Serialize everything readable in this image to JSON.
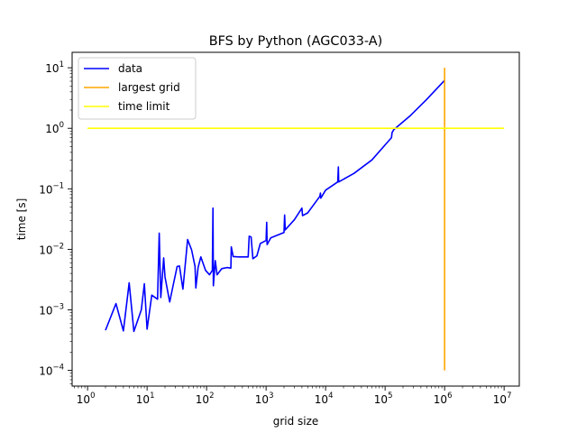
{
  "chart_data": {
    "type": "line",
    "title": "BFS by Python (AGC033-A)",
    "xlabel": "grid size",
    "ylabel": "time [s]",
    "xscale": "log",
    "yscale": "log",
    "xlim": [
      0.55,
      18000000
    ],
    "ylim": [
      5.5e-05,
      18
    ],
    "grid": false,
    "legend_position": "top-left",
    "x_ticks": [
      {
        "value": 1,
        "base": "10",
        "exp": "0"
      },
      {
        "value": 10,
        "base": "10",
        "exp": "1"
      },
      {
        "value": 100,
        "base": "10",
        "exp": "2"
      },
      {
        "value": 1000,
        "base": "10",
        "exp": "3"
      },
      {
        "value": 10000,
        "base": "10",
        "exp": "4"
      },
      {
        "value": 100000,
        "base": "10",
        "exp": "5"
      },
      {
        "value": 1000000,
        "base": "10",
        "exp": "6"
      },
      {
        "value": 10000000,
        "base": "10",
        "exp": "7"
      }
    ],
    "y_ticks": [
      {
        "value": 0.0001,
        "base": "10",
        "exp": "−4"
      },
      {
        "value": 0.001,
        "base": "10",
        "exp": "−3"
      },
      {
        "value": 0.01,
        "base": "10",
        "exp": "−2"
      },
      {
        "value": 0.1,
        "base": "10",
        "exp": "−1"
      },
      {
        "value": 1,
        "base": "10",
        "exp": "0"
      },
      {
        "value": 10,
        "base": "10",
        "exp": "1"
      }
    ],
    "series": [
      {
        "name": "data",
        "color": "#0000ff",
        "points": [
          [
            2,
            0.00046
          ],
          [
            3,
            0.00127
          ],
          [
            4,
            0.00045
          ],
          [
            5,
            0.0028
          ],
          [
            6,
            0.00044
          ],
          [
            8,
            0.001
          ],
          [
            9,
            0.0027
          ],
          [
            10,
            0.00048
          ],
          [
            12,
            0.00175
          ],
          [
            15,
            0.0015
          ],
          [
            16,
            0.0185
          ],
          [
            17,
            0.0016
          ],
          [
            19,
            0.0072
          ],
          [
            20,
            0.0035
          ],
          [
            24,
            0.00135
          ],
          [
            28,
            0.0028
          ],
          [
            32,
            0.0052
          ],
          [
            35,
            0.0053
          ],
          [
            40,
            0.0022
          ],
          [
            48,
            0.0145
          ],
          [
            56,
            0.0098
          ],
          [
            64,
            0.0052
          ],
          [
            66,
            0.0023
          ],
          [
            72,
            0.005
          ],
          [
            80,
            0.0075
          ],
          [
            96,
            0.0045
          ],
          [
            112,
            0.0038
          ],
          [
            125,
            0.0045
          ],
          [
            128,
            0.048
          ],
          [
            130,
            0.0025
          ],
          [
            140,
            0.0065
          ],
          [
            150,
            0.0038
          ],
          [
            180,
            0.0048
          ],
          [
            220,
            0.005
          ],
          [
            256,
            0.0049
          ],
          [
            260,
            0.011
          ],
          [
            280,
            0.0076
          ],
          [
            350,
            0.0075
          ],
          [
            500,
            0.0075
          ],
          [
            520,
            0.0165
          ],
          [
            560,
            0.016
          ],
          [
            600,
            0.007
          ],
          [
            700,
            0.0078
          ],
          [
            800,
            0.0125
          ],
          [
            1000,
            0.014
          ],
          [
            1024,
            0.028
          ],
          [
            1040,
            0.012
          ],
          [
            1200,
            0.0155
          ],
          [
            2000,
            0.019
          ],
          [
            2048,
            0.037
          ],
          [
            2100,
            0.021
          ],
          [
            3000,
            0.031
          ],
          [
            4000,
            0.048
          ],
          [
            4096,
            0.036
          ],
          [
            5000,
            0.04
          ],
          [
            8000,
            0.075
          ],
          [
            8192,
            0.085
          ],
          [
            8300,
            0.07
          ],
          [
            10000,
            0.095
          ],
          [
            16000,
            0.13
          ],
          [
            16384,
            0.23
          ],
          [
            16600,
            0.13
          ],
          [
            30000,
            0.18
          ],
          [
            60000,
            0.3
          ],
          [
            128000,
            0.7
          ],
          [
            131072,
            0.85
          ],
          [
            140000,
            0.95
          ],
          [
            262144,
            1.6
          ],
          [
            500000,
            3.0
          ],
          [
            1000000,
            6.2
          ]
        ]
      },
      {
        "name": "largest grid",
        "color": "#ffa500",
        "points": [
          [
            1000000,
            0.0001
          ],
          [
            1000000,
            10
          ]
        ]
      },
      {
        "name": "time limit",
        "color": "#ffff00",
        "points": [
          [
            1,
            1
          ],
          [
            10000000,
            1
          ]
        ]
      }
    ]
  }
}
